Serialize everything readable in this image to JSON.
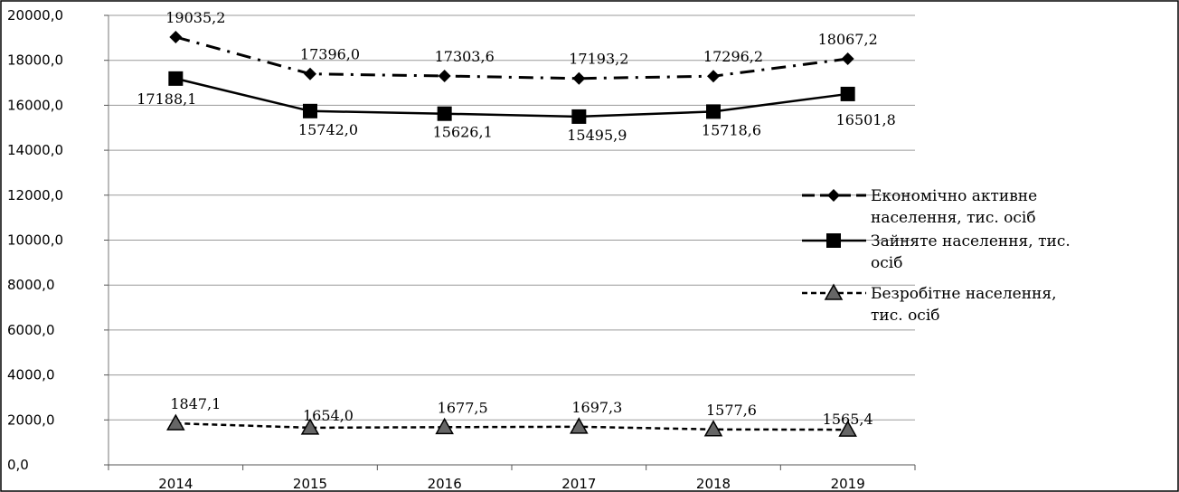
{
  "chart_data": {
    "type": "line",
    "categories": [
      "2014",
      "2015",
      "2016",
      "2017",
      "2018",
      "2019"
    ],
    "ylim": [
      0,
      20000
    ],
    "y_ticks": [
      "0,0",
      "2000,0",
      "4000,0",
      "6000,0",
      "8000,0",
      "10000,0",
      "12000,0",
      "14000,0",
      "16000,0",
      "18000,0",
      "20000,0"
    ],
    "grid": "horizontal",
    "legend_position": "right",
    "series": [
      {
        "name_lines": [
          "Економічно активне",
          "населення, тис. осіб"
        ],
        "marker": "diamond",
        "dash": "dash-dot",
        "color": "#000000",
        "values": [
          19035.2,
          17396.0,
          17303.6,
          17193.2,
          17296.2,
          18067.2
        ],
        "labels": [
          "19035,2",
          "17396,0",
          "17303,6",
          "17193,2",
          "17296,2",
          "18067,2"
        ]
      },
      {
        "name_lines": [
          "Зайняте населення, тис.",
          "осіб"
        ],
        "marker": "square",
        "dash": "solid",
        "color": "#000000",
        "values": [
          17188.1,
          15742.0,
          15626.1,
          15495.9,
          15718.6,
          16501.8
        ],
        "labels": [
          "17188,1",
          "15742,0",
          "15626,1",
          "15495,9",
          "15718,6",
          "16501,8"
        ]
      },
      {
        "name_lines": [
          "Безробітне населення,",
          "тис. осіб"
        ],
        "marker": "triangle",
        "dash": "dashed",
        "color": "#000000",
        "values": [
          1847.1,
          1654.0,
          1677.5,
          1697.3,
          1577.6,
          1565.4
        ],
        "labels": [
          "1847,1",
          "1654,0",
          "1677,5",
          "1697,3",
          "1577,6",
          "1565,4"
        ]
      }
    ]
  }
}
